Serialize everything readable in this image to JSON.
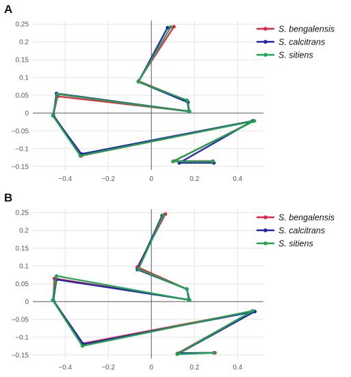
{
  "colors": {
    "bengalensis": "#e8213f",
    "calcitrans": "#1f22b0",
    "sitiens": "#1aa84b",
    "axis": "#555555",
    "grid": "#e3e3e3"
  },
  "chart_data": [
    {
      "type": "line",
      "panel_label": "A",
      "xlim": [
        -0.55,
        0.52
      ],
      "ylim": [
        -0.16,
        0.26
      ],
      "xticks": [
        -0.4,
        -0.2,
        0,
        0.2,
        0.4
      ],
      "xtick_labels": [
        "−0.4",
        "−0.2",
        "0",
        "0.2",
        "0.4"
      ],
      "yticks": [
        0.25,
        0.2,
        0.15,
        0.1,
        0.05,
        0,
        -0.05,
        -0.1,
        -0.15
      ],
      "ytick_labels": [
        "0.25",
        "0.2",
        "0.15",
        "0.1",
        "0.05",
        "0",
        "−0.05",
        "−0.1",
        "−0.15"
      ],
      "grid": true,
      "legend_position": "top-right",
      "series": [
        {
          "name": "S. bengalensis",
          "color": "#e8213f",
          "points": [
            [
              0.105,
              0.243
            ],
            [
              -0.06,
              0.09
            ],
            [
              0.165,
              0.035
            ],
            [
              0.175,
              0.005
            ],
            [
              -0.435,
              0.047
            ],
            [
              -0.455,
              -0.005
            ],
            [
              -0.325,
              -0.12
            ],
            [
              0.475,
              -0.022
            ],
            [
              0.105,
              -0.135
            ],
            [
              0.285,
              -0.135
            ]
          ]
        },
        {
          "name": "S. calcitrans",
          "color": "#1f22b0",
          "points": [
            [
              0.075,
              0.24
            ],
            [
              -0.06,
              0.088
            ],
            [
              0.17,
              0.03
            ],
            [
              0.175,
              0.005
            ],
            [
              -0.44,
              0.055
            ],
            [
              -0.455,
              -0.008
            ],
            [
              -0.325,
              -0.115
            ],
            [
              0.47,
              -0.022
            ],
            [
              0.13,
              -0.14
            ],
            [
              0.29,
              -0.14
            ]
          ]
        },
        {
          "name": "S. sitiens",
          "color": "#1aa84b",
          "points": [
            [
              0.09,
              0.242
            ],
            [
              -0.06,
              0.088
            ],
            [
              0.165,
              0.036
            ],
            [
              0.178,
              0.004
            ],
            [
              -0.435,
              0.053
            ],
            [
              -0.458,
              -0.007
            ],
            [
              -0.33,
              -0.12
            ],
            [
              0.478,
              -0.022
            ],
            [
              0.1,
              -0.136
            ],
            [
              0.285,
              -0.136
            ]
          ]
        }
      ]
    },
    {
      "type": "line",
      "panel_label": "B",
      "xlim": [
        -0.55,
        0.52
      ],
      "ylim": [
        -0.16,
        0.26
      ],
      "xticks": [
        -0.4,
        -0.2,
        0,
        0.2,
        0.4
      ],
      "xtick_labels": [
        "−0.4",
        "−0.2",
        "0",
        "0.2",
        "0.4"
      ],
      "yticks": [
        0.25,
        0.2,
        0.15,
        0.1,
        0.05,
        0,
        -0.05,
        -0.1,
        -0.15
      ],
      "ytick_labels": [
        "0.25",
        "0.2",
        "0.15",
        "0.1",
        "0.05",
        "0",
        "−0.05",
        "−0.1",
        "−0.15"
      ],
      "grid": true,
      "legend_position": "top-right",
      "series": [
        {
          "name": "S. bengalensis",
          "color": "#e8213f",
          "points": [
            [
              0.065,
              0.246
            ],
            [
              -0.065,
              0.097
            ],
            [
              0.165,
              0.035
            ],
            [
              0.175,
              0.005
            ],
            [
              -0.45,
              0.065
            ],
            [
              -0.455,
              0.003
            ],
            [
              -0.32,
              -0.118
            ],
            [
              0.47,
              -0.027
            ],
            [
              0.12,
              -0.146
            ],
            [
              0.295,
              -0.144
            ]
          ]
        },
        {
          "name": "S. calcitrans",
          "color": "#1f22b0",
          "points": [
            [
              0.05,
              0.242
            ],
            [
              -0.065,
              0.09
            ],
            [
              0.165,
              0.035
            ],
            [
              0.175,
              0.005
            ],
            [
              -0.44,
              0.062
            ],
            [
              -0.455,
              0.003
            ],
            [
              -0.315,
              -0.12
            ],
            [
              0.48,
              -0.028
            ],
            [
              0.13,
              -0.145
            ],
            [
              0.29,
              -0.144
            ]
          ]
        },
        {
          "name": "S. sitiens",
          "color": "#1aa84b",
          "points": [
            [
              0.055,
              0.243
            ],
            [
              -0.06,
              0.091
            ],
            [
              0.165,
              0.035
            ],
            [
              0.178,
              0.004
            ],
            [
              -0.44,
              0.072
            ],
            [
              -0.458,
              0.004
            ],
            [
              -0.32,
              -0.125
            ],
            [
              0.47,
              -0.026
            ],
            [
              0.12,
              -0.148
            ],
            [
              0.29,
              -0.144
            ]
          ]
        }
      ]
    }
  ]
}
